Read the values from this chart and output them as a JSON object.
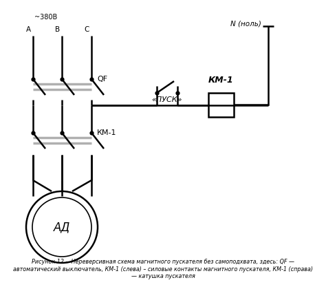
{
  "caption": "Рисунок 12 —Нереверсивная схема магнитного пускателя без самоподхвата, здесь: QF —\nавтоматический выключатель, КМ-1 (слева) – силовые контакты магнитного пускателя, КМ-1 (справа)\n— катушка пускателя",
  "label_380": "~380В",
  "label_A": "A",
  "label_B": "B",
  "label_C": "C",
  "label_QF": "QF",
  "label_KM1_left": "КМ-1",
  "label_KM1_right": "КМ-1",
  "label_pusk": "«ПУСК»",
  "label_AD": "АД",
  "label_N": "N (ноль)",
  "bg_color": "#ffffff",
  "line_color": "#000000",
  "gray_color": "#b0b0b0"
}
